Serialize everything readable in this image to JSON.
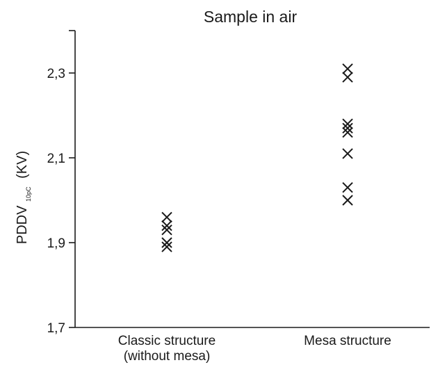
{
  "chart_data": {
    "type": "scatter",
    "title": "Sample in air",
    "ylabel": "PDDV",
    "ylabel_subscript": "10pC",
    "ylabel_unit": "(KV)",
    "xlabel": "",
    "categories": [
      [
        "Classic structure",
        "(without mesa)"
      ],
      [
        "Mesa structure"
      ]
    ],
    "ylim": [
      1.7,
      2.4
    ],
    "yticks": [
      1.7,
      1.9,
      2.1,
      2.3
    ],
    "ytick_labels": [
      "1,7",
      "1,9",
      "2,1",
      "2,3"
    ],
    "marker": "x",
    "series": [
      {
        "category_index": 0,
        "values": [
          1.96,
          1.94,
          1.93,
          1.9,
          1.89
        ]
      },
      {
        "category_index": 1,
        "values": [
          2.31,
          2.29,
          2.18,
          2.17,
          2.16,
          2.11,
          2.03,
          2.0
        ]
      }
    ],
    "grid": false,
    "legend": "none"
  }
}
